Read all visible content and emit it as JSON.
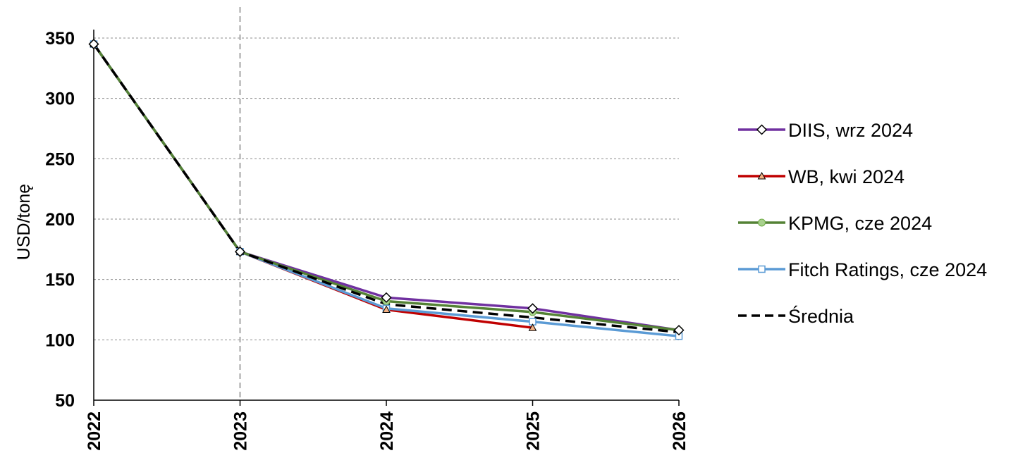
{
  "chart_data": {
    "type": "line",
    "title": "",
    "xlabel": "",
    "ylabel": "USD/tonę",
    "x": [
      "2022",
      "2023",
      "2024",
      "2025",
      "2026"
    ],
    "ylim": [
      50,
      350
    ],
    "yticks": [
      50,
      100,
      150,
      200,
      250,
      300,
      350
    ],
    "grid": true,
    "reference_line_x": "2023",
    "legend_position": "right",
    "series": [
      {
        "name": "DIIS, wrz 2024",
        "color": "#7030a0",
        "marker": "diamond",
        "dashed": false,
        "values": [
          345,
          173,
          135,
          126,
          108
        ]
      },
      {
        "name": "WB, kwi 2024",
        "color": "#c00000",
        "marker": "triangle",
        "dashed": false,
        "values": [
          345,
          173,
          125,
          110,
          null
        ]
      },
      {
        "name": "KPMG, cze 2024",
        "color": "#548235",
        "marker": "circle",
        "dashed": false,
        "values": [
          345,
          173,
          132,
          123,
          108
        ]
      },
      {
        "name": "Fitch Ratings, cze 2024",
        "color": "#5b9bd5",
        "marker": "square",
        "dashed": false,
        "values": [
          345,
          173,
          126,
          115,
          103
        ]
      },
      {
        "name": "Średnia",
        "color": "#000000",
        "marker": "none",
        "dashed": true,
        "values": [
          345,
          173,
          129.5,
          118.5,
          106.3
        ]
      }
    ]
  }
}
